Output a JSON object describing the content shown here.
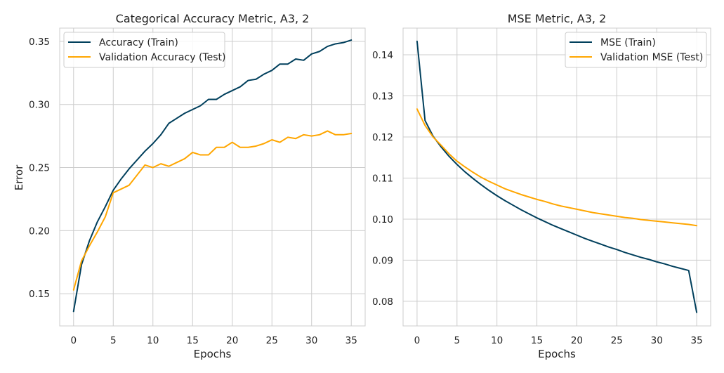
{
  "chart_data": [
    {
      "type": "line",
      "title": "Categorical Accuracy Metric, A3, 2",
      "xlabel": "Epochs",
      "ylabel": "Error",
      "xlim": [
        -1.75,
        36.75
      ],
      "ylim": [
        0.1245,
        0.3605
      ],
      "xticks": [
        0,
        5,
        10,
        15,
        20,
        25,
        30,
        35
      ],
      "yticks": [
        0.15,
        0.2,
        0.25,
        0.3,
        0.35
      ],
      "ytick_labels": [
        "0.15",
        "0.20",
        "0.25",
        "0.30",
        "0.35"
      ],
      "grid": true,
      "legend_position": "upper-left",
      "x": [
        0,
        1,
        2,
        3,
        4,
        5,
        6,
        7,
        8,
        9,
        10,
        11,
        12,
        13,
        14,
        15,
        16,
        17,
        18,
        19,
        20,
        21,
        22,
        23,
        24,
        25,
        26,
        27,
        28,
        29,
        30,
        31,
        32,
        33,
        34,
        35
      ],
      "series": [
        {
          "name": "Accuracy (Train)",
          "color": "#003f5c",
          "values": [
            0.136,
            0.173,
            0.192,
            0.207,
            0.219,
            0.232,
            0.241,
            0.249,
            0.256,
            0.263,
            0.269,
            0.276,
            0.285,
            0.289,
            0.293,
            0.296,
            0.299,
            0.304,
            0.304,
            0.308,
            0.311,
            0.314,
            0.319,
            0.32,
            0.324,
            0.327,
            0.332,
            0.332,
            0.336,
            0.335,
            0.34,
            0.342,
            0.346,
            0.348,
            0.349,
            0.351
          ]
        },
        {
          "name": "Validation Accuracy (Test)",
          "color": "#ffa600",
          "values": [
            0.153,
            0.176,
            0.188,
            0.199,
            0.211,
            0.23,
            0.233,
            0.236,
            0.244,
            0.252,
            0.25,
            0.253,
            0.251,
            0.254,
            0.257,
            0.262,
            0.26,
            0.26,
            0.266,
            0.266,
            0.27,
            0.266,
            0.266,
            0.267,
            0.269,
            0.272,
            0.27,
            0.274,
            0.273,
            0.276,
            0.275,
            0.276,
            0.279,
            0.276,
            0.276,
            0.277
          ]
        }
      ]
    },
    {
      "type": "line",
      "title": "MSE Metric, A3, 2",
      "xlabel": "Epochs",
      "ylabel": "",
      "xlim": [
        -1.75,
        36.75
      ],
      "ylim": [
        0.074,
        0.1465
      ],
      "xticks": [
        0,
        5,
        10,
        15,
        20,
        25,
        30,
        35
      ],
      "yticks": [
        0.08,
        0.09,
        0.1,
        0.11,
        0.12,
        0.13,
        0.14
      ],
      "ytick_labels": [
        "0.08",
        "0.09",
        "0.10",
        "0.11",
        "0.12",
        "0.13",
        "0.14"
      ],
      "grid": true,
      "legend_position": "upper-right",
      "x": [
        0,
        1,
        2,
        3,
        4,
        5,
        6,
        7,
        8,
        9,
        10,
        11,
        12,
        13,
        14,
        15,
        16,
        17,
        18,
        19,
        20,
        21,
        22,
        23,
        24,
        25,
        26,
        27,
        28,
        29,
        30,
        31,
        32,
        33,
        34,
        35
      ],
      "series": [
        {
          "name": "MSE (Train)",
          "color": "#003f5c",
          "values": [
            0.1433,
            0.124,
            0.1202,
            0.1176,
            0.1153,
            0.1133,
            0.1115,
            0.1099,
            0.1084,
            0.107,
            0.1057,
            0.1045,
            0.1034,
            0.1023,
            0.1013,
            0.1003,
            0.0994,
            0.0985,
            0.0977,
            0.0969,
            0.0961,
            0.0953,
            0.0946,
            0.0939,
            0.0932,
            0.0926,
            0.0919,
            0.0913,
            0.0907,
            0.0902,
            0.0896,
            0.0891,
            0.0885,
            0.088,
            0.0875,
            0.0773
          ]
        },
        {
          "name": "Validation MSE (Test)",
          "color": "#ffa600",
          "values": [
            0.1268,
            0.1228,
            0.12,
            0.118,
            0.1159,
            0.1141,
            0.1127,
            0.1114,
            0.1102,
            0.1092,
            0.1083,
            0.1074,
            0.1067,
            0.106,
            0.1054,
            0.1048,
            0.1043,
            0.1037,
            0.1032,
            0.1028,
            0.1024,
            0.102,
            0.1016,
            0.1013,
            0.101,
            0.1007,
            0.1004,
            0.1002,
            0.0999,
            0.0997,
            0.0995,
            0.0993,
            0.0991,
            0.0989,
            0.0987,
            0.0984
          ]
        }
      ]
    }
  ]
}
